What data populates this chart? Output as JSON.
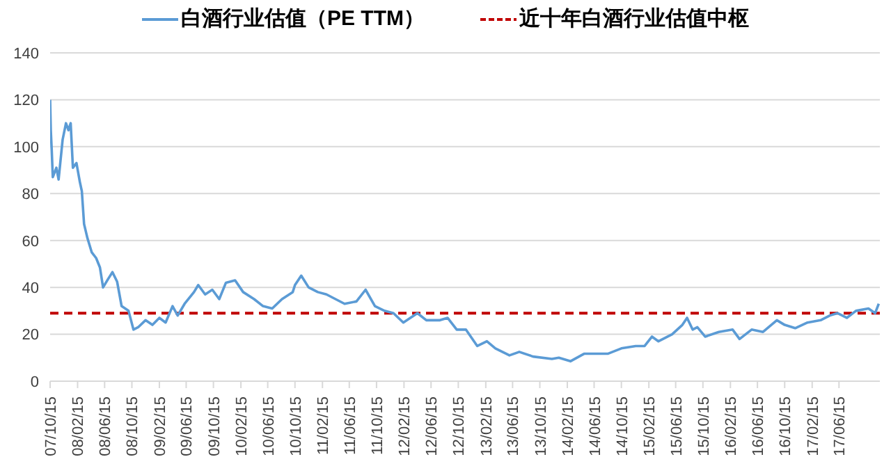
{
  "chart_data": {
    "type": "line",
    "legend": "top",
    "grid": "y",
    "line_style": "solid",
    "marker": "none",
    "xlim": [
      "2007-10-15",
      "2017-12-15"
    ],
    "xticks": [
      {
        "value": "2007-10-15",
        "label": "07/10/15"
      },
      {
        "value": "2008-02-15",
        "label": "08/02/15"
      },
      {
        "value": "2008-06-15",
        "label": "08/06/15"
      },
      {
        "value": "2008-10-15",
        "label": "08/10/15"
      },
      {
        "value": "2009-02-15",
        "label": "09/02/15"
      },
      {
        "value": "2009-06-15",
        "label": "09/06/15"
      },
      {
        "value": "2009-10-15",
        "label": "09/10/15"
      },
      {
        "value": "2010-02-15",
        "label": "10/02/15"
      },
      {
        "value": "2010-06-15",
        "label": "10/06/15"
      },
      {
        "value": "2010-10-15",
        "label": "10/10/15"
      },
      {
        "value": "2011-02-15",
        "label": "11/02/15"
      },
      {
        "value": "2011-06-15",
        "label": "11/06/15"
      },
      {
        "value": "2011-10-15",
        "label": "11/10/15"
      },
      {
        "value": "2012-02-15",
        "label": "12/02/15"
      },
      {
        "value": "2012-06-15",
        "label": "12/06/15"
      },
      {
        "value": "2012-10-15",
        "label": "12/10/15"
      },
      {
        "value": "2013-02-15",
        "label": "13/02/15"
      },
      {
        "value": "2013-06-15",
        "label": "13/06/15"
      },
      {
        "value": "2013-10-15",
        "label": "13/10/15"
      },
      {
        "value": "2014-02-15",
        "label": "14/02/15"
      },
      {
        "value": "2014-06-15",
        "label": "14/06/15"
      },
      {
        "value": "2014-10-15",
        "label": "14/10/15"
      },
      {
        "value": "2015-02-15",
        "label": "15/02/15"
      },
      {
        "value": "2015-06-15",
        "label": "15/06/15"
      },
      {
        "value": "2015-10-15",
        "label": "15/10/15"
      },
      {
        "value": "2016-02-15",
        "label": "16/02/15"
      },
      {
        "value": "2016-06-15",
        "label": "16/06/15"
      },
      {
        "value": "2016-10-15",
        "label": "16/10/15"
      },
      {
        "value": "2017-02-15",
        "label": "17/02/15"
      },
      {
        "value": "2017-06-15",
        "label": "17/06/15"
      }
    ],
    "ylim": [
      0,
      140
    ],
    "yticks": [
      0,
      20,
      40,
      60,
      80,
      100,
      120,
      140
    ],
    "x": [
      "2007-10-15",
      "2007-10-18",
      "2007-10-22",
      "2007-10-27",
      "2007-11-12",
      "2007-11-22",
      "2007-12-10",
      "2007-12-25",
      "2008-01-05",
      "2008-01-15",
      "2008-01-25",
      "2008-02-10",
      "2008-02-25",
      "2008-03-05",
      "2008-03-15",
      "2008-03-30",
      "2008-04-18",
      "2008-05-08",
      "2008-05-25",
      "2008-06-08",
      "2008-06-30",
      "2008-07-20",
      "2008-08-10",
      "2008-08-30",
      "2008-09-30",
      "2008-10-22",
      "2008-11-12",
      "2008-12-15",
      "2009-01-15",
      "2009-02-15",
      "2009-03-15",
      "2009-04-15",
      "2009-05-08",
      "2009-06-08",
      "2009-07-20",
      "2009-08-08",
      "2009-09-08",
      "2009-10-10",
      "2009-11-10",
      "2009-12-10",
      "2010-01-20",
      "2010-02-25",
      "2010-04-15",
      "2010-05-25",
      "2010-07-05",
      "2010-08-18",
      "2010-10-05",
      "2010-10-15",
      "2010-11-12",
      "2010-12-15",
      "2011-01-25",
      "2011-03-05",
      "2011-05-25",
      "2011-07-17",
      "2011-08-27",
      "2011-10-08",
      "2011-11-20",
      "2011-12-30",
      "2012-02-12",
      "2012-04-15",
      "2012-05-25",
      "2012-07-25",
      "2012-08-28",
      "2012-10-08",
      "2012-11-18",
      "2013-01-08",
      "2013-02-20",
      "2013-03-30",
      "2013-06-01",
      "2013-07-15",
      "2013-09-15",
      "2013-12-08",
      "2014-01-08",
      "2014-03-01",
      "2014-05-01",
      "2014-07-03",
      "2014-08-15",
      "2014-10-15",
      "2014-12-18",
      "2015-01-27",
      "2015-03-01",
      "2015-03-30",
      "2015-05-30",
      "2015-07-15",
      "2015-08-05",
      "2015-08-30",
      "2015-09-20",
      "2015-10-25",
      "2015-12-25",
      "2016-02-25",
      "2016-03-27",
      "2016-05-20",
      "2016-07-10",
      "2016-09-10",
      "2016-10-15",
      "2016-12-01",
      "2017-01-25",
      "2017-03-25",
      "2017-05-05",
      "2017-06-08",
      "2017-07-20",
      "2017-08-30",
      "2017-10-25",
      "2017-11-24",
      "2017-12-10"
    ],
    "series": [
      {
        "name": "白酒行业估值（PE TTM）",
        "color": "#5b9bd5",
        "values": [
          120,
          107,
          99,
          87,
          91,
          86,
          103,
          110,
          107,
          110,
          91,
          93,
          85,
          81,
          67,
          61,
          55,
          52.5,
          48.5,
          40,
          43.5,
          46.5,
          42.4,
          32,
          30,
          22,
          23,
          26,
          24,
          27,
          25,
          32,
          28,
          33,
          38,
          41,
          37,
          39,
          35,
          42,
          43,
          38,
          35,
          32,
          31,
          35,
          38,
          41,
          45,
          40,
          38,
          37,
          33,
          34,
          39,
          32,
          30,
          29,
          25,
          29,
          26,
          26,
          27,
          22,
          22,
          15,
          17,
          14,
          11,
          12.5,
          10.5,
          9.5,
          10,
          8.5,
          11.7,
          11.7,
          11.7,
          14,
          15,
          15,
          19,
          17,
          20,
          24,
          27,
          22,
          23,
          19,
          21,
          22,
          18,
          22,
          21,
          26,
          24,
          22.6,
          25,
          26,
          28,
          29,
          27,
          30,
          31,
          29,
          33
        ]
      }
    ],
    "ref_lines": [
      {
        "axis": "y",
        "value": 29,
        "label": "近十年白酒行业估值中枢",
        "color": "#c00000",
        "line_style": "dashed"
      }
    ]
  }
}
